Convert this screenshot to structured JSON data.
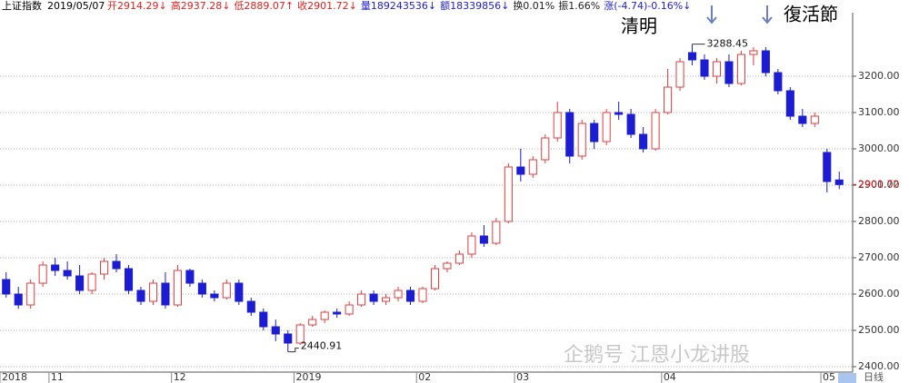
{
  "chart_data": {
    "type": "candlestick",
    "title": "上证指数",
    "date": "2019/05/07",
    "header": [
      {
        "text": "开2914.29↓",
        "color": "#e02020"
      },
      {
        "text": "高2937.28↓",
        "color": "#e02020"
      },
      {
        "text": "低2889.07↑",
        "color": "#e02020"
      },
      {
        "text": "收2901.72↓",
        "color": "#e02020"
      },
      {
        "text": "量189243536↓",
        "color": "#2020d0"
      },
      {
        "text": "额18339856↓",
        "color": "#2020d0"
      },
      {
        "text": "换0.01%",
        "color": "#222222"
      },
      {
        "text": "振1.66%",
        "color": "#222222"
      },
      {
        "text": "涨(-4.74)-0.16%↓",
        "color": "#2020d0"
      }
    ],
    "categories": [
      "2018",
      null,
      null,
      null,
      "11",
      null,
      null,
      null,
      null,
      null,
      null,
      null,
      null,
      null,
      "12",
      null,
      null,
      null,
      null,
      null,
      null,
      null,
      null,
      null,
      "2019",
      null,
      null,
      null,
      null,
      null,
      null,
      null,
      null,
      null,
      "02",
      null,
      null,
      null,
      null,
      null,
      null,
      null,
      "03",
      null,
      null,
      null,
      null,
      null,
      null,
      null,
      null,
      null,
      null,
      null,
      "04",
      null,
      null,
      null,
      null,
      null,
      null,
      null,
      null,
      null,
      null,
      null,
      null,
      "05",
      null
    ],
    "open": [
      2640,
      2600,
      2570,
      2630,
      2680,
      2665,
      2650,
      2610,
      2655,
      2690,
      2670,
      2610,
      2580,
      2630,
      2570,
      2665,
      2630,
      2600,
      2590,
      2630,
      2580,
      2550,
      2510,
      2490,
      2465,
      2515,
      2530,
      2550,
      2545,
      2570,
      2600,
      2580,
      2590,
      2610,
      2580,
      2615,
      2670,
      2685,
      2710,
      2760,
      2740,
      2800,
      2950,
      2930,
      2970,
      3030,
      3100,
      2980,
      3070,
      3020,
      3100,
      3095,
      3040,
      3000,
      3100,
      3170,
      3265,
      3245,
      3200,
      3240,
      3180,
      3260,
      3270,
      3210,
      3160,
      3090,
      3070,
      2990,
      2914.29
    ],
    "high": [
      2660,
      2620,
      2640,
      2690,
      2700,
      2690,
      2680,
      2660,
      2700,
      2710,
      2680,
      2620,
      2640,
      2660,
      2680,
      2670,
      2640,
      2610,
      2640,
      2640,
      2590,
      2560,
      2530,
      2500,
      2520,
      2540,
      2555,
      2560,
      2580,
      2610,
      2610,
      2600,
      2620,
      2620,
      2620,
      2680,
      2690,
      2720,
      2770,
      2790,
      2810,
      2960,
      3000,
      2980,
      3040,
      3130,
      3110,
      3080,
      3080,
      3110,
      3130,
      3110,
      3060,
      3110,
      3220,
      3250,
      3288.45,
      3260,
      3250,
      3260,
      3270,
      3280,
      3280,
      3220,
      3170,
      3110,
      3100,
      3000,
      2937.28
    ],
    "low": [
      2590,
      2560,
      2560,
      2620,
      2650,
      2640,
      2600,
      2600,
      2640,
      2660,
      2600,
      2570,
      2570,
      2560,
      2565,
      2620,
      2590,
      2580,
      2585,
      2570,
      2540,
      2500,
      2470,
      2440.91,
      2460,
      2510,
      2520,
      2535,
      2540,
      2565,
      2570,
      2570,
      2580,
      2570,
      2575,
      2610,
      2660,
      2680,
      2700,
      2730,
      2735,
      2795,
      2910,
      2920,
      2960,
      3020,
      2960,
      2970,
      3000,
      3010,
      3080,
      3030,
      2990,
      2995,
      3095,
      3160,
      3230,
      3190,
      3180,
      3170,
      3175,
      3230,
      3200,
      3150,
      3080,
      3060,
      3060,
      2880,
      2889.07
    ],
    "close": [
      2600,
      2570,
      2630,
      2680,
      2665,
      2650,
      2610,
      2655,
      2690,
      2670,
      2610,
      2580,
      2630,
      2570,
      2665,
      2630,
      2600,
      2590,
      2630,
      2580,
      2550,
      2510,
      2490,
      2465,
      2515,
      2530,
      2550,
      2545,
      2570,
      2600,
      2580,
      2590,
      2610,
      2580,
      2615,
      2670,
      2685,
      2710,
      2760,
      2740,
      2800,
      2950,
      2930,
      2970,
      3030,
      3100,
      2980,
      3070,
      3020,
      3100,
      3095,
      3040,
      3000,
      3100,
      3170,
      3240,
      3245,
      3200,
      3240,
      3180,
      3260,
      3270,
      3210,
      3160,
      3090,
      3070,
      3090,
      2910,
      2901.72
    ],
    "up_color": "#e23c3c",
    "down_color": "#1c1cd2",
    "ylim": [
      2385,
      3375
    ],
    "yticks": [
      {
        "value": 2400,
        "label": "2400.00"
      },
      {
        "value": 2500,
        "label": "2500.00"
      },
      {
        "value": 2600,
        "label": "2600.00"
      },
      {
        "value": 2700,
        "label": "2700.00"
      },
      {
        "value": 2800,
        "label": "2800.00"
      },
      {
        "value": 2900,
        "label": "2900.00"
      },
      {
        "value": 3000,
        "label": "3000.00"
      },
      {
        "value": 3100,
        "label": "3100.00"
      },
      {
        "value": 3200,
        "label": "3200.00"
      }
    ],
    "last_label": "2901.72",
    "max_label": "3288.45",
    "min_label": "2440.91",
    "annotations": [
      "清明",
      "復活節"
    ],
    "watermark": "企鹅号 江恩小龙讲股",
    "period": "日线",
    "grid": true
  }
}
